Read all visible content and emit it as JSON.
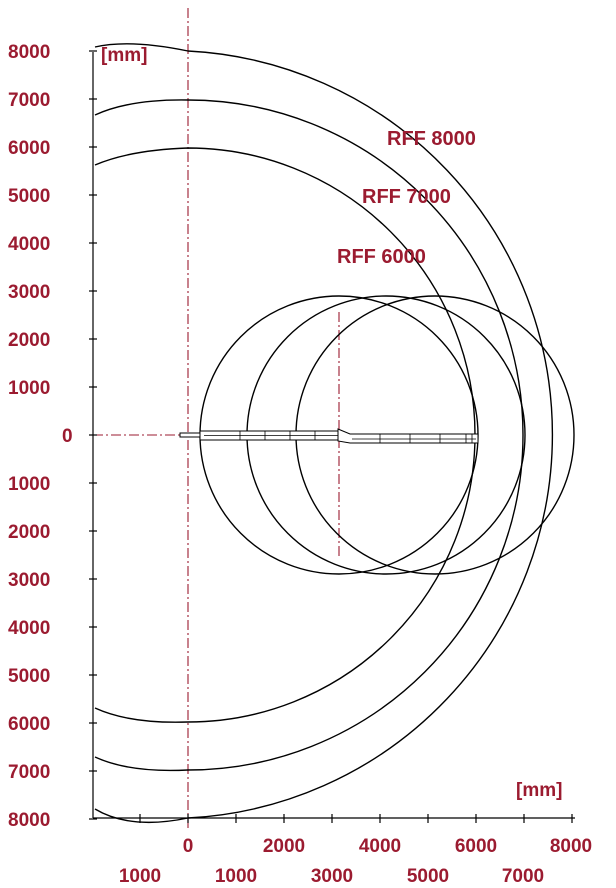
{
  "units": {
    "top_left": "[mm]",
    "bottom_right": "[mm]"
  },
  "y_ticks": [
    "8000",
    "7000",
    "6000",
    "5000",
    "4000",
    "3000",
    "2000",
    "1000",
    "0",
    "1000",
    "2000",
    "3000",
    "4000",
    "5000",
    "6000",
    "7000",
    "8000"
  ],
  "x_ticks_row1": [
    "0",
    "2000",
    "4000",
    "6000",
    "8000"
  ],
  "x_ticks_row2": [
    "1000",
    "1000",
    "3000",
    "5000",
    "7000"
  ],
  "curve_labels": {
    "rff8000": "RFF 8000",
    "rff7000": "RFF 7000",
    "rff6000": "RFF 6000"
  },
  "chart_data": {
    "type": "diagram",
    "reach_radii_mm": [
      {
        "name": "RFF 8000",
        "radius": 8000
      },
      {
        "name": "RFF 7000",
        "radius": 7000
      },
      {
        "name": "RFF 6000",
        "radius": 6000
      }
    ],
    "slewing_circles_mm": [
      {
        "center_x": 3000,
        "radius": 2850
      },
      {
        "center_x": 4000,
        "radius": 2850
      },
      {
        "center_x": 5000,
        "radius": 2850
      }
    ],
    "x_range_mm": [
      -1000,
      8000
    ],
    "y_range_mm": [
      -8000,
      8000
    ],
    "colors": {
      "labels": "#9b1b30",
      "lines": "#000000",
      "center_lines": "#9b1b30"
    }
  }
}
